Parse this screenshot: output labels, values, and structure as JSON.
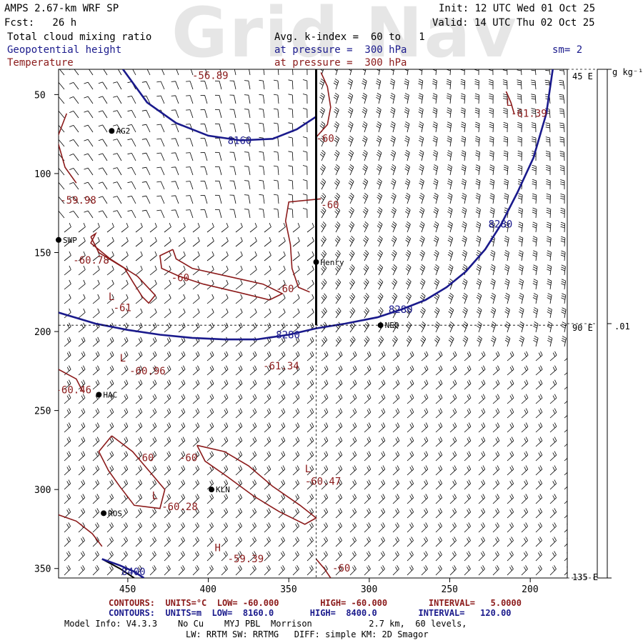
{
  "colors": {
    "temperature": "#8b1a1a",
    "geopotential": "#1a1a8c",
    "axes": "#000000",
    "background": "#ffffff",
    "watermark": "#e6e6e6"
  },
  "watermark": "Grid Nav",
  "header": {
    "line1_left": "AMPS 2.67-km WRF SP",
    "line2_left": "Fcst:   26 h",
    "line1_right": "Init: 12 UTC Wed 01 Oct 25",
    "line2_right": "Valid: 14 UTC Thu 02 Oct 25",
    "field1": "Total cloud mixing ratio",
    "field2": "Geopotential height",
    "field3": "Temperature",
    "avg": "Avg. k-index =  60 to   1",
    "pressure1": "at pressure =  300 hPa",
    "pressure2": "at pressure =  300 hPa",
    "smoothing": "sm= 2"
  },
  "footer": {
    "temp_contours": "CONTOURS:  UNITS=°C  LOW= -60.000        HIGH= -60.000        INTERVAL=   5.0000",
    "height_contours": "CONTOURS:  UNITS=m  LOW=  8160.0       HIGH=  8400.0        INTERVAL=   120.00",
    "model_info": "Model Info: V4.3.3    No Cu    MYJ PBL  Morrison           2.7 km,  60 levels,",
    "physics": "LW: RRTM SW: RRTMG   DIFF: simple KM: 2D Smagor"
  },
  "colorbar": {
    "units": "g kg⁻¹",
    "value": ".01"
  },
  "cross_section_labels": {
    "top": "45 E",
    "middle": "90 E",
    "bottom": "135 E"
  },
  "chart_data": {
    "type": "contour",
    "x_axis": {
      "ticks": [
        450,
        400,
        350,
        300,
        250,
        200
      ],
      "range": [
        493,
        177
      ],
      "reversed": true
    },
    "y_axis": {
      "ticks": [
        50,
        100,
        150,
        200,
        250,
        300,
        350
      ],
      "range": [
        34,
        356
      ],
      "reversed": true
    },
    "stations": [
      {
        "name": "AG2",
        "x": 460,
        "y": 73
      },
      {
        "name": "SWP",
        "x": 493,
        "y": 142
      },
      {
        "name": "Henry",
        "x": 333,
        "y": 156
      },
      {
        "name": "NEQ",
        "x": 293,
        "y": 196
      },
      {
        "name": "HAC",
        "x": 468,
        "y": 240
      },
      {
        "name": "KLN",
        "x": 398,
        "y": 300
      },
      {
        "name": "ROS",
        "x": 465,
        "y": 315
      }
    ],
    "cross_section": {
      "x": 333,
      "y_from": 34,
      "y_to": 196
    },
    "crosshair": {
      "x": 333,
      "y": 196
    },
    "geopotential_height_contours": [
      {
        "value": 8160,
        "label": "8160",
        "points": [
          [
            453,
            34
          ],
          [
            438,
            55
          ],
          [
            420,
            68
          ],
          [
            400,
            76
          ],
          [
            380,
            79
          ],
          [
            360,
            78
          ],
          [
            345,
            72
          ],
          [
            333,
            64
          ]
        ]
      },
      {
        "value": 8280,
        "label": "8280",
        "points": [
          [
            493,
            188
          ],
          [
            470,
            195
          ],
          [
            450,
            199
          ],
          [
            430,
            202
          ],
          [
            410,
            204
          ],
          [
            390,
            205
          ],
          [
            370,
            205
          ],
          [
            350,
            202
          ],
          [
            333,
            198
          ],
          [
            315,
            195
          ],
          [
            295,
            191
          ],
          [
            280,
            186
          ],
          [
            265,
            180
          ],
          [
            252,
            172
          ],
          [
            240,
            162
          ],
          [
            228,
            148
          ],
          [
            218,
            132
          ],
          [
            208,
            112
          ],
          [
            198,
            90
          ],
          [
            190,
            62
          ],
          [
            186,
            34
          ]
        ]
      },
      {
        "value": 8400,
        "label": "8400",
        "points": [
          [
            466,
            344
          ],
          [
            455,
            348
          ],
          [
            446,
            352
          ],
          [
            440,
            356
          ]
        ]
      }
    ],
    "temperature_labels": [
      {
        "text": "-56.89",
        "x": 410,
        "y": 40
      },
      {
        "text": "-59.98",
        "x": 492,
        "y": 119
      },
      {
        "text": "-60.78",
        "x": 484,
        "y": 157
      },
      {
        "text": "-60",
        "x": 423,
        "y": 168
      },
      {
        "text": "-60",
        "x": 358,
        "y": 175
      },
      {
        "text": "L",
        "x": 462,
        "y": 180
      },
      {
        "text": "-61",
        "x": 459,
        "y": 187
      },
      {
        "text": "L",
        "x": 455,
        "y": 219
      },
      {
        "text": "-60.96",
        "x": 449,
        "y": 227
      },
      {
        "text": "-61.34",
        "x": 366,
        "y": 224
      },
      {
        "text": "-60.46",
        "x": 495,
        "y": 239
      },
      {
        "text": "-60",
        "x": 445,
        "y": 282
      },
      {
        "text": "-60",
        "x": 418,
        "y": 282
      },
      {
        "text": "L",
        "x": 340,
        "y": 289
      },
      {
        "text": "-60.47",
        "x": 340,
        "y": 297
      },
      {
        "text": "L",
        "x": 435,
        "y": 306
      },
      {
        "text": "-60.28",
        "x": 429,
        "y": 313
      },
      {
        "text": "H",
        "x": 396,
        "y": 339
      },
      {
        "text": "-59.39",
        "x": 388,
        "y": 346
      },
      {
        "text": "-60",
        "x": 323,
        "y": 352
      },
      {
        "text": "-60",
        "x": 330,
        "y": 122
      },
      {
        "text": "-60",
        "x": 333,
        "y": 80
      },
      {
        "text": "L",
        "x": 215,
        "y": 57
      },
      {
        "text": "-61.39",
        "x": 212,
        "y": 64
      }
    ],
    "temperature_contours": [
      {
        "value": -60,
        "points": [
          [
            333,
            77
          ],
          [
            326,
            69
          ],
          [
            324,
            58
          ],
          [
            326,
            45
          ],
          [
            330,
            36
          ]
        ]
      },
      {
        "value": -60,
        "points": [
          [
            330,
            116
          ],
          [
            350,
            118
          ],
          [
            352,
            130
          ],
          [
            349,
            145
          ],
          [
            348,
            160
          ],
          [
            344,
            172
          ],
          [
            337,
            175
          ]
        ]
      },
      {
        "value": -60,
        "points": [
          [
            488,
            62
          ],
          [
            494,
            78
          ],
          [
            489,
            96
          ],
          [
            482,
            106
          ]
        ]
      },
      {
        "value": -60,
        "points": [
          [
            473,
            140
          ],
          [
            468,
            150
          ],
          [
            452,
            160
          ],
          [
            446,
            170
          ],
          [
            441,
            178
          ],
          [
            437,
            182
          ],
          [
            433,
            177
          ],
          [
            444,
            165
          ],
          [
            461,
            154
          ],
          [
            473,
            144
          ],
          [
            470,
            138
          ],
          [
            473,
            140
          ]
        ]
      },
      {
        "value": -60,
        "points": [
          [
            422,
            148
          ],
          [
            430,
            152
          ],
          [
            429,
            160
          ],
          [
            418,
            165
          ],
          [
            403,
            170
          ],
          [
            382,
            175
          ],
          [
            362,
            180
          ],
          [
            354,
            176
          ],
          [
            366,
            170
          ],
          [
            388,
            165
          ],
          [
            410,
            160
          ],
          [
            420,
            154
          ],
          [
            422,
            148
          ]
        ]
      },
      {
        "value": -60,
        "points": [
          [
            493,
            224
          ],
          [
            482,
            230
          ],
          [
            478,
            238
          ]
        ]
      },
      {
        "value": -60,
        "points": [
          [
            460,
            266
          ],
          [
            447,
            276
          ],
          [
            437,
            288
          ],
          [
            427,
            300
          ],
          [
            430,
            312
          ],
          [
            446,
            310
          ],
          [
            455,
            298
          ],
          [
            462,
            288
          ],
          [
            468,
            276
          ],
          [
            460,
            266
          ]
        ]
      },
      {
        "value": -60,
        "points": [
          [
            407,
            272
          ],
          [
            390,
            276
          ],
          [
            375,
            285
          ],
          [
            360,
            298
          ],
          [
            343,
            310
          ],
          [
            333,
            318
          ],
          [
            340,
            322
          ],
          [
            356,
            314
          ],
          [
            372,
            304
          ],
          [
            388,
            292
          ],
          [
            402,
            282
          ],
          [
            407,
            272
          ]
        ]
      },
      {
        "value": -60,
        "points": [
          [
            493,
            316
          ],
          [
            482,
            320
          ],
          [
            472,
            328
          ],
          [
            466,
            336
          ]
        ]
      },
      {
        "value": -60,
        "points": [
          [
            333,
            344
          ],
          [
            328,
            350
          ],
          [
            324,
            356
          ]
        ]
      },
      {
        "value": -60,
        "points": [
          [
            215,
            48
          ],
          [
            212,
            55
          ],
          [
            210,
            62
          ]
        ]
      }
    ],
    "cloud_mixing_ratio_contours": [
      {
        "value": 0.01,
        "points": [
          [
            466,
            344
          ],
          [
            455,
            350
          ],
          [
            446,
            356
          ]
        ]
      }
    ],
    "wind_field": {
      "variable": "wind barbs",
      "coverage": "full grid"
    }
  }
}
